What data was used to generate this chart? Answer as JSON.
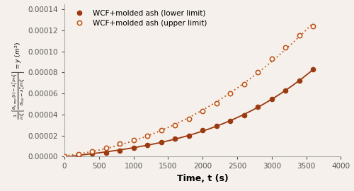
{
  "title": "",
  "xlabel": "Time, t (s)",
  "xlim": [
    0,
    4000
  ],
  "ylim": [
    0,
    0.000145
  ],
  "x_lower": [
    0,
    200,
    400,
    600,
    800,
    1000,
    1200,
    1400,
    1600,
    1800,
    2000,
    2200,
    2400,
    2600,
    2800,
    3000,
    3200,
    3400,
    3600
  ],
  "y_lower": [
    0,
    1e-06,
    2.8e-06,
    4e-06,
    6e-06,
    8.5e-06,
    1.1e-05,
    1.4e-05,
    1.7e-05,
    2e-05,
    2.5e-05,
    2.9e-05,
    3.4e-05,
    3.9e-05,
    4.7e-05,
    5.5e-05,
    6.3e-05,
    7.2e-05,
    8.3e-05
  ],
  "x_upper": [
    0,
    200,
    400,
    600,
    800,
    1000,
    1200,
    1400,
    1600,
    1800,
    2000,
    2200,
    2400,
    2600,
    2800,
    3000,
    3200,
    3400,
    3600
  ],
  "y_upper": [
    0,
    2e-06,
    5e-06,
    8.5e-06,
    1.25e-05,
    1.6e-05,
    2e-05,
    2.5e-05,
    3e-05,
    3.6e-05,
    4.3e-05,
    5.1e-05,
    6e-05,
    6.9e-05,
    8e-05,
    9.3e-05,
    0.000104,
    0.000115,
    0.000124
  ],
  "color_lower": "#9B3A10",
  "color_upper": "#C05418",
  "bg_color": "#F5F0EB",
  "legend_lower": "WCF+molded ash (lower limit)",
  "legend_upper": "WCF+molded ash (upper limit)"
}
